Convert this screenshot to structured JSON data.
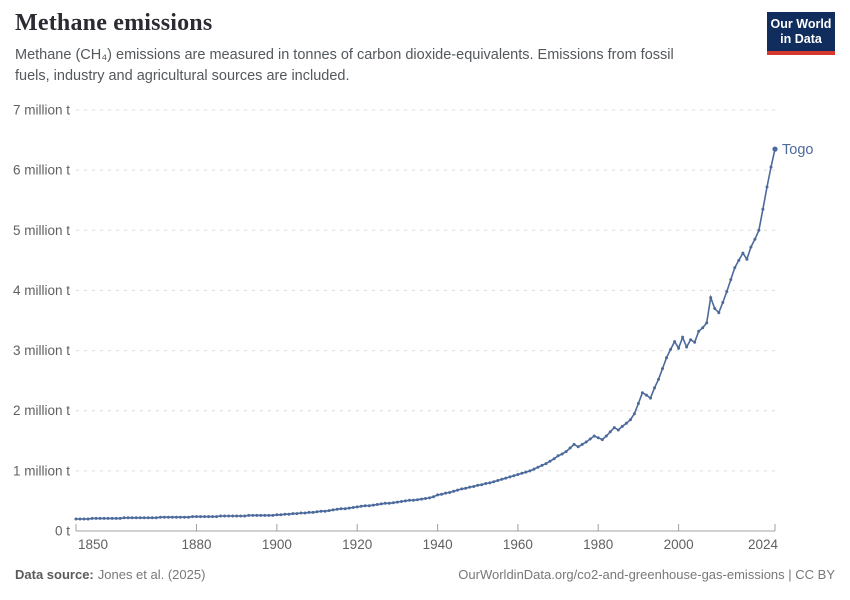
{
  "header": {
    "title": "Methane emissions",
    "subtitle": "Methane (CH₄) emissions are measured in tonnes of carbon dioxide-equivalents. Emissions from fossil fuels, industry and agricultural sources are included.",
    "logo": {
      "line1": "Our World",
      "line2": "in Data",
      "bg_color": "#102d5e",
      "accent_color": "#d7382e"
    }
  },
  "footer": {
    "source_label": "Data source:",
    "source_value": "Jones et al. (2025)",
    "link": "OurWorldinData.org/co2-and-greenhouse-gas-emissions | CC BY"
  },
  "chart_data": {
    "type": "line",
    "title": "Methane emissions",
    "ylabel": "",
    "xlabel": "",
    "unit": "tonnes of CO2-equivalents",
    "xlim": [
      1850,
      2024
    ],
    "ylim": [
      0,
      7
    ],
    "grid": "horizontal dashed",
    "legend_position": "end-of-line",
    "line_color": "#4c6a9c",
    "grid_color": "#dcdcdc",
    "axis_color": "#a0a0a0",
    "x_ticks": [
      1850,
      1880,
      1900,
      1920,
      1940,
      1960,
      1980,
      2000,
      2024
    ],
    "y_ticks": [
      {
        "v": 0,
        "label": "0 t"
      },
      {
        "v": 1,
        "label": "1 million t"
      },
      {
        "v": 2,
        "label": "2 million t"
      },
      {
        "v": 3,
        "label": "3 million t"
      },
      {
        "v": 4,
        "label": "4 million t"
      },
      {
        "v": 5,
        "label": "5 million t"
      },
      {
        "v": 6,
        "label": "6 million t"
      },
      {
        "v": 7,
        "label": "7 million t"
      }
    ],
    "y_unit_of_points": "million t",
    "series": [
      {
        "name": "Togo",
        "points": [
          [
            1850,
            0.2
          ],
          [
            1851,
            0.2
          ],
          [
            1852,
            0.2
          ],
          [
            1853,
            0.2
          ],
          [
            1854,
            0.21
          ],
          [
            1855,
            0.21
          ],
          [
            1856,
            0.21
          ],
          [
            1857,
            0.21
          ],
          [
            1858,
            0.21
          ],
          [
            1859,
            0.21
          ],
          [
            1860,
            0.21
          ],
          [
            1861,
            0.21
          ],
          [
            1862,
            0.22
          ],
          [
            1863,
            0.22
          ],
          [
            1864,
            0.22
          ],
          [
            1865,
            0.22
          ],
          [
            1866,
            0.22
          ],
          [
            1867,
            0.22
          ],
          [
            1868,
            0.22
          ],
          [
            1869,
            0.22
          ],
          [
            1870,
            0.22
          ],
          [
            1871,
            0.23
          ],
          [
            1872,
            0.23
          ],
          [
            1873,
            0.23
          ],
          [
            1874,
            0.23
          ],
          [
            1875,
            0.23
          ],
          [
            1876,
            0.23
          ],
          [
            1877,
            0.23
          ],
          [
            1878,
            0.23
          ],
          [
            1879,
            0.24
          ],
          [
            1880,
            0.24
          ],
          [
            1881,
            0.24
          ],
          [
            1882,
            0.24
          ],
          [
            1883,
            0.24
          ],
          [
            1884,
            0.24
          ],
          [
            1885,
            0.24
          ],
          [
            1886,
            0.25
          ],
          [
            1887,
            0.25
          ],
          [
            1888,
            0.25
          ],
          [
            1889,
            0.25
          ],
          [
            1890,
            0.25
          ],
          [
            1891,
            0.25
          ],
          [
            1892,
            0.25
          ],
          [
            1893,
            0.26
          ],
          [
            1894,
            0.26
          ],
          [
            1895,
            0.26
          ],
          [
            1896,
            0.26
          ],
          [
            1897,
            0.26
          ],
          [
            1898,
            0.26
          ],
          [
            1899,
            0.26
          ],
          [
            1900,
            0.27
          ],
          [
            1901,
            0.27
          ],
          [
            1902,
            0.28
          ],
          [
            1903,
            0.28
          ],
          [
            1904,
            0.29
          ],
          [
            1905,
            0.29
          ],
          [
            1906,
            0.3
          ],
          [
            1907,
            0.3
          ],
          [
            1908,
            0.31
          ],
          [
            1909,
            0.31
          ],
          [
            1910,
            0.32
          ],
          [
            1911,
            0.33
          ],
          [
            1912,
            0.33
          ],
          [
            1913,
            0.34
          ],
          [
            1914,
            0.35
          ],
          [
            1915,
            0.36
          ],
          [
            1916,
            0.37
          ],
          [
            1917,
            0.37
          ],
          [
            1918,
            0.38
          ],
          [
            1919,
            0.39
          ],
          [
            1920,
            0.4
          ],
          [
            1921,
            0.41
          ],
          [
            1922,
            0.42
          ],
          [
            1923,
            0.42
          ],
          [
            1924,
            0.43
          ],
          [
            1925,
            0.44
          ],
          [
            1926,
            0.45
          ],
          [
            1927,
            0.46
          ],
          [
            1928,
            0.46
          ],
          [
            1929,
            0.47
          ],
          [
            1930,
            0.48
          ],
          [
            1931,
            0.49
          ],
          [
            1932,
            0.5
          ],
          [
            1933,
            0.51
          ],
          [
            1934,
            0.51
          ],
          [
            1935,
            0.52
          ],
          [
            1936,
            0.53
          ],
          [
            1937,
            0.54
          ],
          [
            1938,
            0.55
          ],
          [
            1939,
            0.57
          ],
          [
            1940,
            0.6
          ],
          [
            1941,
            0.61
          ],
          [
            1942,
            0.63
          ],
          [
            1943,
            0.64
          ],
          [
            1944,
            0.66
          ],
          [
            1945,
            0.68
          ],
          [
            1946,
            0.7
          ],
          [
            1947,
            0.71
          ],
          [
            1948,
            0.73
          ],
          [
            1949,
            0.74
          ],
          [
            1950,
            0.76
          ],
          [
            1951,
            0.77
          ],
          [
            1952,
            0.79
          ],
          [
            1953,
            0.8
          ],
          [
            1954,
            0.82
          ],
          [
            1955,
            0.84
          ],
          [
            1956,
            0.86
          ],
          [
            1957,
            0.88
          ],
          [
            1958,
            0.9
          ],
          [
            1959,
            0.92
          ],
          [
            1960,
            0.94
          ],
          [
            1961,
            0.96
          ],
          [
            1962,
            0.98
          ],
          [
            1963,
            1.0
          ],
          [
            1964,
            1.03
          ],
          [
            1965,
            1.06
          ],
          [
            1966,
            1.09
          ],
          [
            1967,
            1.12
          ],
          [
            1968,
            1.16
          ],
          [
            1969,
            1.2
          ],
          [
            1970,
            1.25
          ],
          [
            1971,
            1.28
          ],
          [
            1972,
            1.32
          ],
          [
            1973,
            1.38
          ],
          [
            1974,
            1.44
          ],
          [
            1975,
            1.4
          ],
          [
            1976,
            1.44
          ],
          [
            1977,
            1.48
          ],
          [
            1978,
            1.53
          ],
          [
            1979,
            1.58
          ],
          [
            1980,
            1.55
          ],
          [
            1981,
            1.52
          ],
          [
            1982,
            1.58
          ],
          [
            1983,
            1.65
          ],
          [
            1984,
            1.72
          ],
          [
            1985,
            1.68
          ],
          [
            1986,
            1.74
          ],
          [
            1987,
            1.79
          ],
          [
            1988,
            1.85
          ],
          [
            1989,
            1.95
          ],
          [
            1990,
            2.12
          ],
          [
            1991,
            2.3
          ],
          [
            1992,
            2.26
          ],
          [
            1993,
            2.21
          ],
          [
            1994,
            2.38
          ],
          [
            1995,
            2.52
          ],
          [
            1996,
            2.7
          ],
          [
            1997,
            2.88
          ],
          [
            1998,
            3.02
          ],
          [
            1999,
            3.15
          ],
          [
            2000,
            3.04
          ],
          [
            2001,
            3.22
          ],
          [
            2002,
            3.06
          ],
          [
            2003,
            3.18
          ],
          [
            2004,
            3.14
          ],
          [
            2005,
            3.32
          ],
          [
            2006,
            3.38
          ],
          [
            2007,
            3.46
          ],
          [
            2008,
            3.88
          ],
          [
            2009,
            3.7
          ],
          [
            2010,
            3.63
          ],
          [
            2011,
            3.8
          ],
          [
            2012,
            3.98
          ],
          [
            2013,
            4.18
          ],
          [
            2014,
            4.38
          ],
          [
            2015,
            4.5
          ],
          [
            2016,
            4.62
          ],
          [
            2017,
            4.52
          ],
          [
            2018,
            4.72
          ],
          [
            2019,
            4.85
          ],
          [
            2020,
            5.0
          ],
          [
            2021,
            5.35
          ],
          [
            2022,
            5.72
          ],
          [
            2023,
            6.05
          ],
          [
            2024,
            6.35
          ]
        ]
      }
    ]
  }
}
